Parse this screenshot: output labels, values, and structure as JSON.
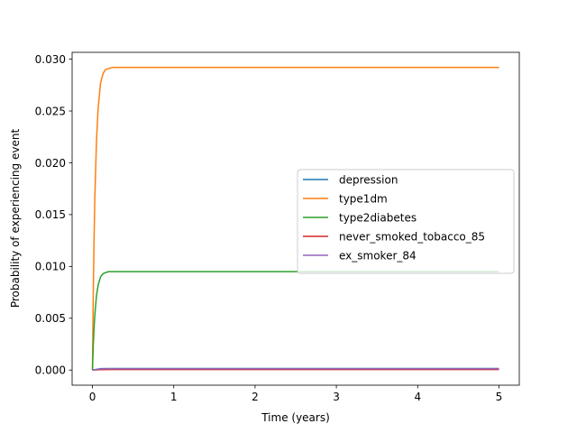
{
  "chart_data": {
    "type": "line",
    "xlabel": "Time (years)",
    "ylabel": "Probability of experiencing event",
    "xlim": [
      -0.25,
      5.25
    ],
    "ylim": [
      -0.00146,
      0.03066
    ],
    "xticks": [
      "0",
      "1",
      "2",
      "3",
      "4",
      "5"
    ],
    "yticks": [
      "0.000",
      "0.005",
      "0.010",
      "0.015",
      "0.020",
      "0.025",
      "0.030"
    ],
    "grid": false,
    "legend_position": "center-right",
    "series": [
      {
        "name": "depression",
        "color": "#1f77b4",
        "x": [
          0,
          0.1,
          0.2,
          0.3,
          0.5,
          1,
          2,
          3,
          4,
          5
        ],
        "y": [
          0,
          0.00014,
          0.00015,
          0.00015,
          0.00015,
          0.00015,
          0.00015,
          0.00015,
          0.00015,
          0.00015
        ]
      },
      {
        "name": "type1dm",
        "color": "#ff7f0e",
        "x": [
          0,
          0.01,
          0.02,
          0.03,
          0.05,
          0.07,
          0.1,
          0.13,
          0.16,
          0.2,
          0.25,
          0.3,
          0.5,
          1,
          2,
          3,
          4,
          5
        ],
        "y": [
          0,
          0.0074,
          0.0128,
          0.0168,
          0.0222,
          0.0253,
          0.0277,
          0.0286,
          0.029,
          0.0291,
          0.0292,
          0.0292,
          0.0292,
          0.0292,
          0.0292,
          0.0292,
          0.0292,
          0.0292
        ]
      },
      {
        "name": "type2diabetes",
        "color": "#2ca02c",
        "x": [
          0,
          0.01,
          0.02,
          0.03,
          0.05,
          0.07,
          0.1,
          0.13,
          0.16,
          0.2,
          0.25,
          0.3,
          0.5,
          1,
          2,
          3,
          4,
          5
        ],
        "y": [
          0,
          0.0024,
          0.0041,
          0.0054,
          0.0072,
          0.0082,
          0.009,
          0.0093,
          0.0094,
          0.0095,
          0.0095,
          0.0095,
          0.0095,
          0.0095,
          0.0095,
          0.0095,
          0.0095,
          0.0095
        ]
      },
      {
        "name": "never_smoked_tobacco_85",
        "color": "#d62728",
        "x": [
          0,
          0.1,
          0.2,
          0.5,
          1,
          2,
          3,
          4,
          5
        ],
        "y": [
          0,
          4e-05,
          5e-05,
          5e-05,
          5e-05,
          5e-05,
          5e-05,
          5e-05,
          5e-05
        ]
      },
      {
        "name": "ex_smoker_84",
        "color": "#9467bd",
        "x": [
          0,
          0.1,
          0.2,
          0.5,
          1,
          2,
          3,
          4,
          5
        ],
        "y": [
          0,
          0.00012,
          0.00013,
          0.00013,
          0.00013,
          0.00013,
          0.00013,
          0.00013,
          0.00013
        ]
      }
    ]
  }
}
